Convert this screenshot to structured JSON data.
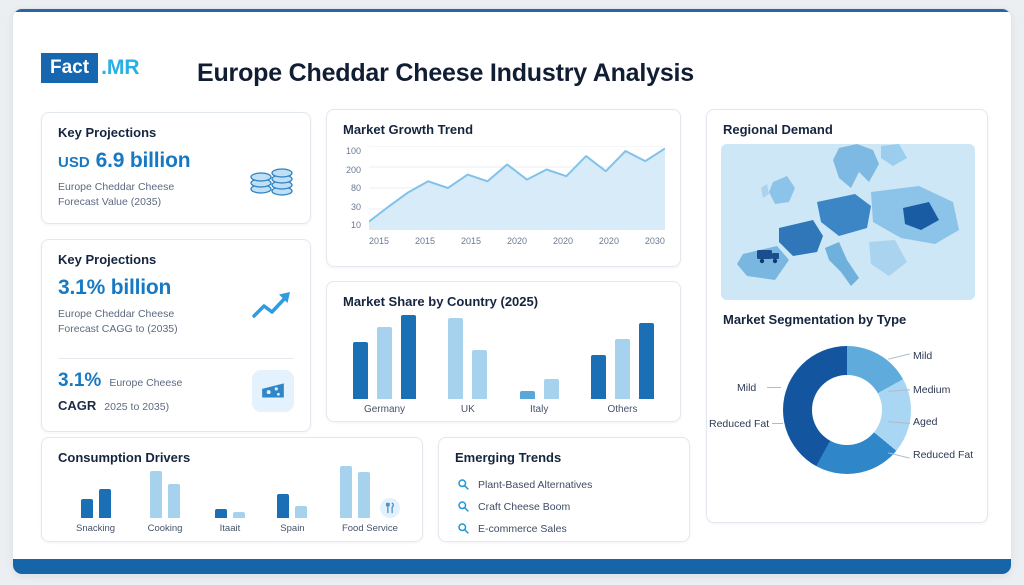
{
  "brand": {
    "fact": "Fact",
    "mr": ".MR"
  },
  "header": {
    "title": "Europe Cheddar Cheese Industry Analysis"
  },
  "projection_value": {
    "title": "Key Projections",
    "currency": "USD",
    "value": "6.9 billion",
    "desc_line1": "Europe Cheddar Cheese",
    "desc_line2": "Forecast Value (2035)"
  },
  "projection_cagr": {
    "title": "Key Projections",
    "value": "3.1% billion",
    "desc_line1": "Europe Cheddar Cheese",
    "desc_line2": "Forecast CAGG to (2035)",
    "sub_value": "3.1%",
    "sub_desc1": "Europe Cheese",
    "sub_label": "CAGR",
    "sub_desc2": "2025 to 2035)"
  },
  "growth": {
    "title": "Market Growth Trend"
  },
  "share": {
    "title": "Market Share by Country (2025)"
  },
  "drivers": {
    "title": "Consumption Drivers"
  },
  "trends": {
    "title": "Emerging Trends",
    "items": [
      "Plant-Based Alternatives",
      "Craft Cheese Boom",
      "E-commerce Sales"
    ]
  },
  "regional": {
    "title": "Regional Demand"
  },
  "segmentation": {
    "title": "Market Segmentation by Type",
    "right_labels": [
      "Mild",
      "Medium",
      "Aged",
      "Reduced Fat"
    ],
    "left_labels": [
      "Mild",
      "Reduced Fat"
    ]
  },
  "palette": {
    "accent_blue": "#1779c4",
    "cyan": "#27b0e6",
    "navy": "#101d33",
    "bar_dark": "#1b6fb4",
    "bar_light": "#a6d2ee",
    "footer_blue": "#1565a8",
    "area_fill": "#d8ebf9",
    "area_line": "#82c2ea"
  },
  "icons": {
    "coins-icon": "stacked coins",
    "trend-arrow-icon": "upward zigzag arrow",
    "cheese-icon": "cheese wedge",
    "utensils-icon": "fork and knife",
    "search-icon": "magnifier",
    "truck-icon": "delivery truck"
  },
  "chart_data": [
    {
      "id": "growth",
      "type": "area",
      "title": "Market Growth Trend",
      "y_ticks": [
        "100",
        "200",
        "80",
        "30",
        "10"
      ],
      "x_ticks": [
        "2015",
        "2015",
        "2015",
        "2020",
        "2020",
        "2020",
        "2030"
      ],
      "ylim": [
        0,
        100
      ],
      "values": [
        10,
        28,
        45,
        58,
        50,
        66,
        58,
        78,
        60,
        72,
        64,
        88,
        70,
        94,
        82,
        97
      ]
    },
    {
      "id": "market_share",
      "type": "bar",
      "title": "Market Share by Country (2025)",
      "groups": [
        {
          "label": "Germany",
          "bars": [
            {
              "value": 68,
              "color": "#1b6fb4"
            },
            {
              "value": 86,
              "color": "#a6d2ee"
            },
            {
              "value": 100,
              "color": "#1b6fb4"
            }
          ]
        },
        {
          "label": "UK",
          "bars": [
            {
              "value": 97,
              "color": "#a6d2ee"
            },
            {
              "value": 58,
              "color": "#a6d2ee"
            }
          ]
        },
        {
          "label": "Italy",
          "bars": [
            {
              "value": 9,
              "color": "#5aa7d8"
            },
            {
              "value": 24,
              "color": "#a6d2ee"
            }
          ]
        },
        {
          "label": "Others",
          "bars": [
            {
              "value": 52,
              "color": "#1b6fb4"
            },
            {
              "value": 72,
              "color": "#a6d2ee"
            },
            {
              "value": 90,
              "color": "#1b6fb4"
            }
          ]
        }
      ]
    },
    {
      "id": "drivers",
      "type": "bar",
      "title": "Consumption Drivers",
      "groups": [
        {
          "label": "Snacking",
          "bars": [
            {
              "value": 36,
              "color": "#1b6fb4"
            },
            {
              "value": 56,
              "color": "#1b6fb4"
            }
          ]
        },
        {
          "label": "Cooking",
          "bars": [
            {
              "value": 90,
              "color": "#a6d2ee"
            },
            {
              "value": 66,
              "color": "#a6d2ee"
            }
          ]
        },
        {
          "label": "Itaait",
          "bars": [
            {
              "value": 17,
              "color": "#1b6fb4"
            },
            {
              "value": 12,
              "color": "#a6d2ee"
            }
          ]
        },
        {
          "label": "Spain",
          "bars": [
            {
              "value": 46,
              "color": "#1b6fb4"
            },
            {
              "value": 24,
              "color": "#a6d2ee"
            }
          ]
        },
        {
          "label": "Food Service",
          "badge": "utensils",
          "bars": [
            {
              "value": 100,
              "color": "#a6d2ee"
            },
            {
              "value": 88,
              "color": "#a6d2ee"
            }
          ]
        }
      ]
    },
    {
      "id": "segmentation",
      "type": "donut",
      "title": "Market Segmentation by Type",
      "segments": [
        {
          "label": "Medium",
          "value": 17,
          "color": "#5fabdc"
        },
        {
          "label": "Aged",
          "value": 19,
          "color": "#a9d6f2"
        },
        {
          "label": "Reduced Fat",
          "value": 22,
          "color": "#2f86c8"
        },
        {
          "label": "Mild",
          "value": 42,
          "color": "#14559f"
        }
      ]
    }
  ]
}
